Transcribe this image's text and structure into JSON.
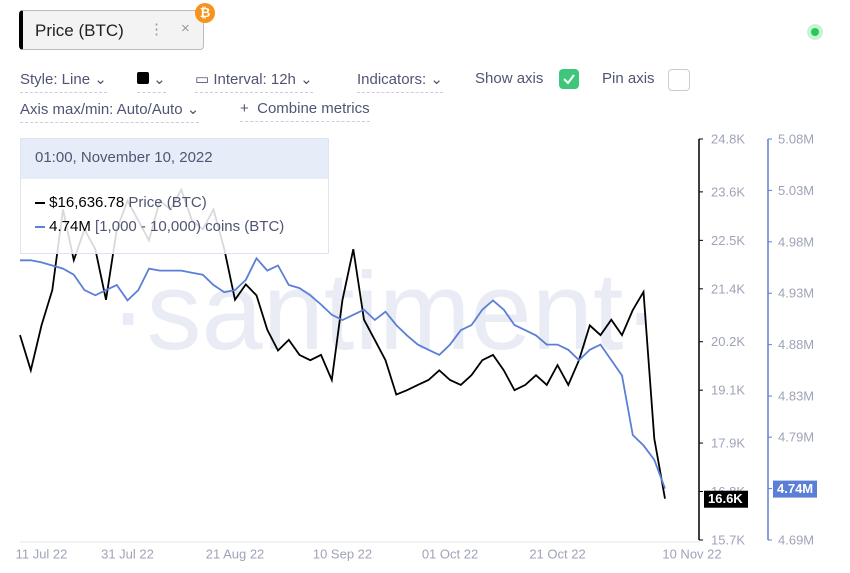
{
  "header": {
    "metric": "Price (BTC)",
    "style": "Style: Line",
    "interval": "Interval: 12h",
    "indicators": "Indicators:",
    "show_axis": "Show axis",
    "show_axis_checked": true,
    "pin_axis": "Pin axis",
    "pin_axis_checked": false,
    "axis_minmax": "Axis max/min: Auto/Auto",
    "combine": "Combine metrics"
  },
  "tooltip": {
    "date": "01:00, November 10, 2022",
    "rows": [
      {
        "value": "$16,636.78",
        "name": "Price (BTC)"
      },
      {
        "value": "4.74M",
        "name": "[1,000 - 10,000) coins (BTC)"
      }
    ]
  },
  "watermark": "·santiment·",
  "chart_data": {
    "type": "line",
    "categories": [
      null,
      null,
      "11 Jul 22",
      null,
      null,
      null,
      null,
      null,
      null,
      null,
      "31 Jul 22",
      null,
      null,
      null,
      null,
      null,
      null,
      null,
      null,
      null,
      "21 Aug 22",
      null,
      null,
      null,
      null,
      null,
      null,
      null,
      null,
      null,
      "10 Sep 22",
      null,
      null,
      null,
      null,
      null,
      null,
      null,
      null,
      null,
      "01 Oct 22",
      null,
      null,
      null,
      null,
      null,
      null,
      null,
      null,
      null,
      "21 Oct 22",
      null,
      null,
      null,
      null,
      null,
      null,
      null,
      null,
      null,
      "10 Nov 22"
    ],
    "series": [
      {
        "name": "Price (BTC)",
        "color": "#000000",
        "axis": "y",
        "current_label": "16.6K",
        "values": [
          20350,
          19550,
          20570,
          21370,
          23200,
          22050,
          22750,
          22300,
          21150,
          22750,
          23400,
          22950,
          22500,
          23400,
          23200,
          23650,
          22950,
          22750,
          23200,
          22300,
          21150,
          21500,
          21250,
          20470,
          20000,
          20240,
          19900,
          19780,
          19900,
          19330,
          21150,
          22300,
          20700,
          20240,
          19780,
          19000,
          19100,
          19220,
          19330,
          19550,
          19330,
          19220,
          19440,
          19780,
          19900,
          19550,
          19100,
          19220,
          19440,
          19220,
          19670,
          19220,
          19780,
          20570,
          20350,
          20700,
          20350,
          20920,
          21330,
          18000,
          16636.78
        ]
      },
      {
        "name": "[1,000 - 10,000) coins (BTC)",
        "color": "#5b7fd6",
        "axis": "y2",
        "current_label": "4.74M",
        "values": [
          4962000,
          4962000,
          4960000,
          4957000,
          4954000,
          4948000,
          4933000,
          4928000,
          4933000,
          4938000,
          4923000,
          4933000,
          4954000,
          4952000,
          4952000,
          4952000,
          4950000,
          4948000,
          4938000,
          4931000,
          4933000,
          4943000,
          4964000,
          4952000,
          4957000,
          4938000,
          4935000,
          4928000,
          4919000,
          4909000,
          4904000,
          4909000,
          4914000,
          4904000,
          4912000,
          4899000,
          4889000,
          4880000,
          4875000,
          4870000,
          4880000,
          4894000,
          4899000,
          4914000,
          4923000,
          4914000,
          4899000,
          4894000,
          4889000,
          4880000,
          4880000,
          4875000,
          4865000,
          4875000,
          4880000,
          4865000,
          4850000,
          4792000,
          4782000,
          4768000,
          4740000
        ]
      }
    ],
    "ylim": [
      15700,
      24800
    ],
    "yticks": [
      {
        "value": 24800,
        "label": "24.8K"
      },
      {
        "value": 23600,
        "label": "23.6K"
      },
      {
        "value": 22500,
        "label": "22.5K"
      },
      {
        "value": 21400,
        "label": "21.4K"
      },
      {
        "value": 20200,
        "label": "20.2K"
      },
      {
        "value": 19100,
        "label": "19.1K"
      },
      {
        "value": 17900,
        "label": "17.9K"
      },
      {
        "value": 16800,
        "label": "16.8K"
      },
      {
        "value": 15700,
        "label": "15.7K"
      }
    ],
    "y2lim": [
      4690000,
      5080000
    ],
    "y2ticks": [
      {
        "value": 5080000,
        "label": "5.08M"
      },
      {
        "value": 5030000,
        "label": "5.03M"
      },
      {
        "value": 4980000,
        "label": "4.98M"
      },
      {
        "value": 4930000,
        "label": "4.93M"
      },
      {
        "value": 4880000,
        "label": "4.88M"
      },
      {
        "value": 4830000,
        "label": "4.83M"
      },
      {
        "value": 4790000,
        "label": "4.79M"
      },
      {
        "value": 4740000,
        "label": "4.74M"
      },
      {
        "value": 4690000,
        "label": "4.69M"
      }
    ]
  }
}
